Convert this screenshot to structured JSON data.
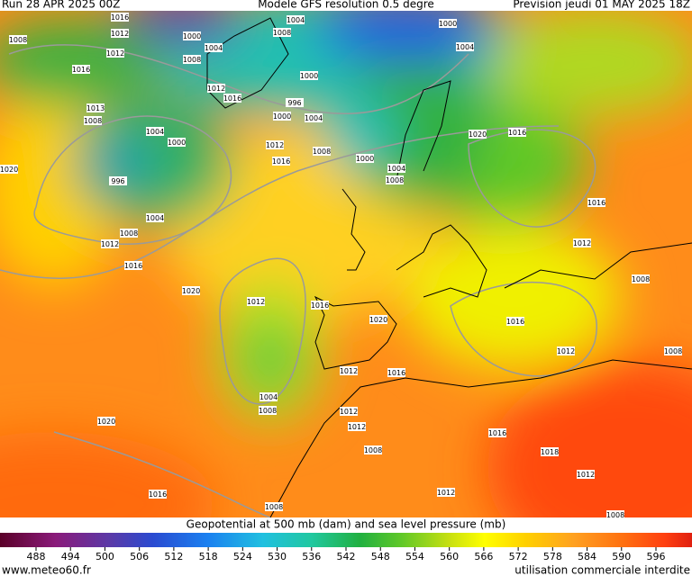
{
  "header": {
    "run": "Run 28 APR 2025 00Z",
    "model": "Modele GFS resolution 0.5 degre",
    "forecast": "Prevision jeudi 01 MAY 2025 18Z"
  },
  "isobar_labels": [
    1016,
    1012,
    1008,
    1012,
    1000,
    1004,
    1008,
    1016,
    1012,
    1016,
    1008,
    1004,
    1000,
    996,
    1000,
    1004,
    1013,
    1008,
    1004,
    1000,
    1012,
    1016,
    1008,
    996,
    1020,
    1000,
    1004,
    1008,
    1020,
    1016,
    1004,
    1008,
    1012,
    1016,
    1016,
    1012,
    1008,
    1020,
    1012,
    1016,
    1020,
    1016,
    1012,
    1008,
    1012,
    1016,
    1004,
    1008,
    1012,
    1012,
    1020,
    1016,
    1008,
    1018,
    1012,
    1012,
    1016,
    1008,
    1008,
    1000,
    1004
  ],
  "colorbar": {
    "title": "Geopotential at 500 mb (dam) and sea level pressure (mb)",
    "ticks": [
      488,
      494,
      500,
      506,
      512,
      518,
      524,
      530,
      536,
      542,
      548,
      554,
      560,
      566,
      572,
      578,
      584,
      590,
      596
    ]
  },
  "footer": {
    "site": "www.meteo60.fr",
    "notice": "utilisation commerciale interdite"
  }
}
